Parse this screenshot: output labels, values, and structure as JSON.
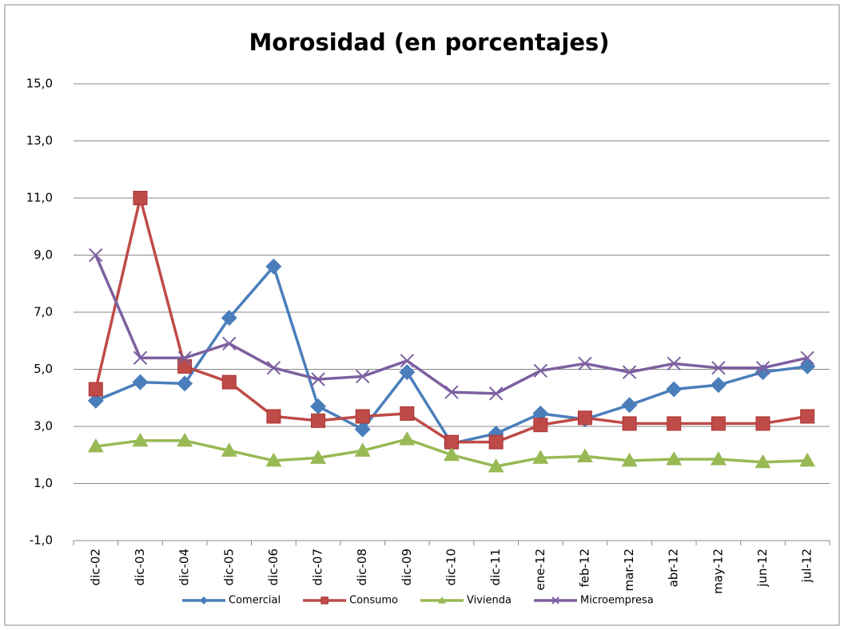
{
  "chart_data": {
    "type": "line",
    "title": "Morosidad  (en porcentajes)",
    "categories": [
      "dic-02",
      "dic-03",
      "dic-04",
      "dic-05",
      "dic-06",
      "dic-07",
      "dic-08",
      "dic-09",
      "dic-10",
      "dic-11",
      "ene-12",
      "feb-12",
      "mar-12",
      "abr-12",
      "may-12",
      "jun-12",
      "jul-12"
    ],
    "series": [
      {
        "name": "Comercial",
        "color": "#4a7ebb",
        "marker": "diamond",
        "values": [
          3.9,
          4.55,
          4.5,
          6.8,
          8.6,
          3.7,
          2.9,
          4.9,
          2.4,
          2.75,
          3.45,
          3.25,
          3.75,
          4.3,
          4.45,
          4.9,
          5.1
        ]
      },
      {
        "name": "Consumo",
        "color": "#be4b48",
        "marker": "square",
        "values": [
          4.3,
          11.0,
          5.1,
          4.55,
          3.35,
          3.2,
          3.35,
          3.45,
          2.45,
          2.45,
          3.05,
          3.3,
          3.1,
          3.1,
          3.1,
          3.1,
          3.35
        ]
      },
      {
        "name": "Vivienda",
        "color": "#98b954",
        "marker": "triangle",
        "values": [
          2.3,
          2.5,
          2.5,
          2.15,
          1.8,
          1.9,
          2.15,
          2.55,
          2.0,
          1.6,
          1.9,
          1.95,
          1.8,
          1.85,
          1.85,
          1.75,
          1.8
        ]
      },
      {
        "name": "Microempresa",
        "color": "#7d60a0",
        "marker": "x",
        "values": [
          9.0,
          5.4,
          5.4,
          5.9,
          5.05,
          4.65,
          4.75,
          5.3,
          4.2,
          4.15,
          4.95,
          5.2,
          4.9,
          5.2,
          5.05,
          5.05,
          5.4
        ]
      }
    ],
    "ylim": [
      -1,
      15
    ],
    "yticks": [
      {
        "value": -1,
        "label": "-1,0"
      },
      {
        "value": 1,
        "label": "1,0"
      },
      {
        "value": 3,
        "label": "3,0"
      },
      {
        "value": 5,
        "label": "5,0"
      },
      {
        "value": 7,
        "label": "7,0"
      },
      {
        "value": 9,
        "label": "9,0"
      },
      {
        "value": 11,
        "label": "11,0"
      },
      {
        "value": 13,
        "label": "13,0"
      },
      {
        "value": 15,
        "label": "15,0"
      }
    ],
    "grid": true,
    "legend": "bottom"
  }
}
